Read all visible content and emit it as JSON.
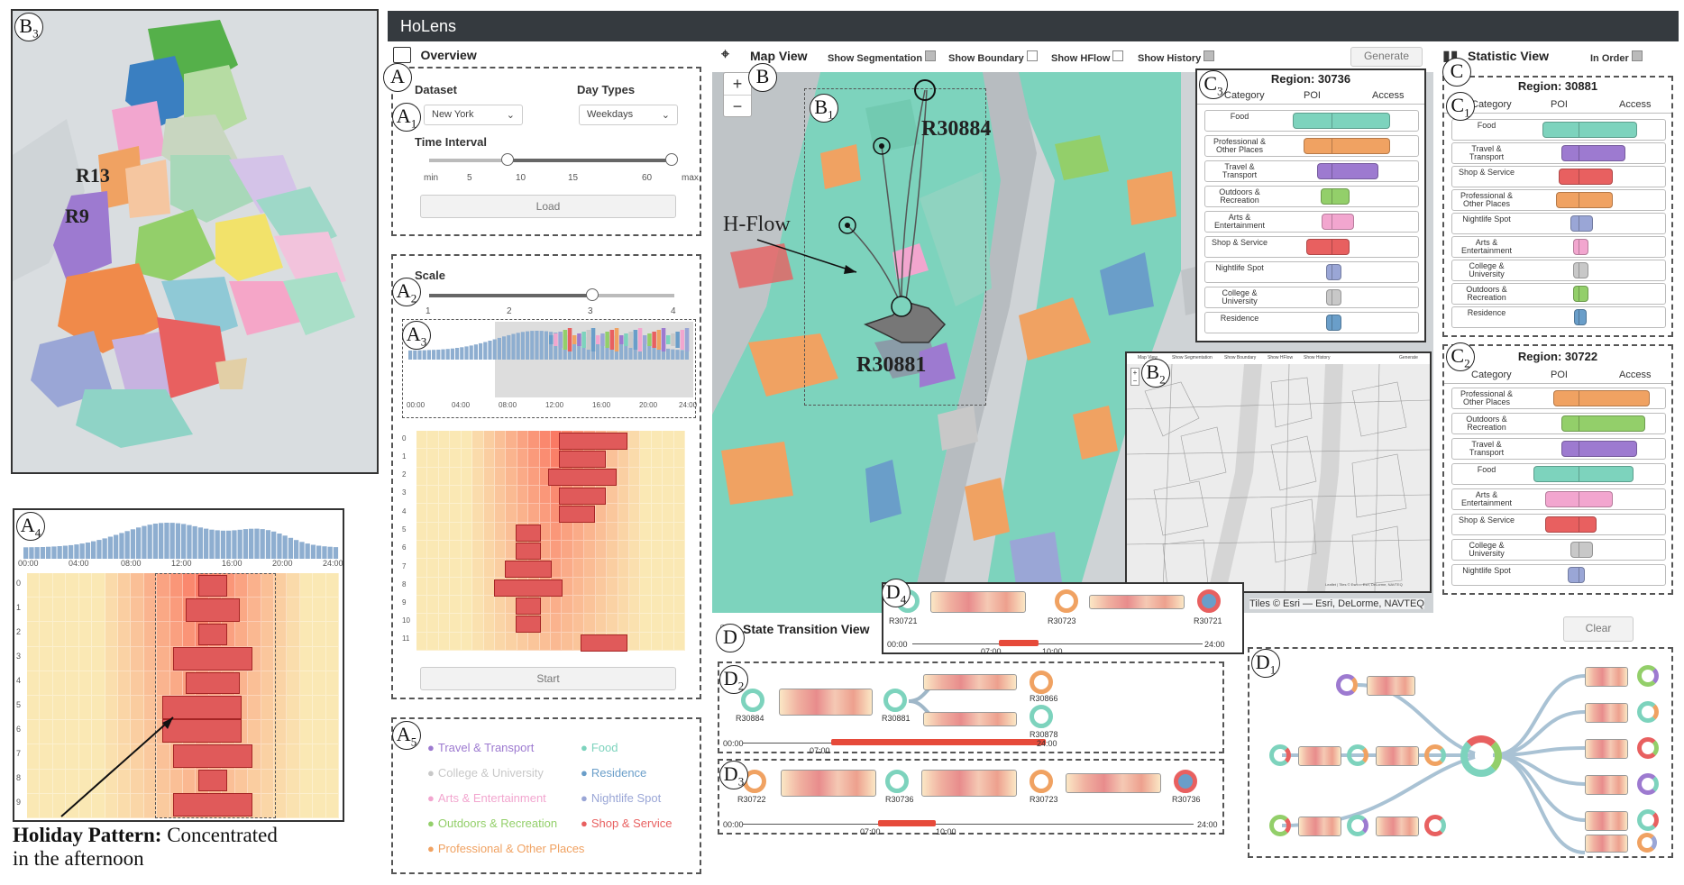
{
  "app_title": "HoLens",
  "labels": {
    "b3": "B",
    "a4": "A",
    "a": "A",
    "a1": "A",
    "a2": "A",
    "a3": "A",
    "a5": "A",
    "b": "B",
    "b1": "B",
    "b2": "B",
    "c": "C",
    "c1": "C",
    "c2": "C",
    "c3": "C",
    "d": "D",
    "d1": "D",
    "d2": "D",
    "d3": "D",
    "d4": "D"
  },
  "subs": {
    "b3": "3",
    "a4": "4",
    "a1": "1",
    "a2": "2",
    "a3": "3",
    "a5": "5",
    "b1": "1",
    "b2": "2",
    "c1": "1",
    "c2": "2",
    "c3": "3",
    "d1": "1",
    "d2": "2",
    "d3": "3",
    "d4": "4"
  },
  "nyc_map": {
    "r13": "R13",
    "r9": "R9"
  },
  "annotation": {
    "bold": "Holiday Pattern:",
    "rest1": " Concentrated",
    "rest2": "in the afternoon"
  },
  "a4_axis": [
    "00:00",
    "04:00",
    "08:00",
    "12:00",
    "16:00",
    "20:00",
    "24:00"
  ],
  "a4_rows": [
    "0",
    "1",
    "2",
    "3",
    "4",
    "5",
    "6",
    "7",
    "8",
    "9"
  ],
  "overview": {
    "title": "Overview",
    "dataset_label": "Dataset",
    "dataset_value": "New York",
    "daytypes_label": "Day Types",
    "daytypes_value": "Weekdays",
    "time_interval_label": "Time Interval",
    "ticks": [
      "min",
      "5",
      "10",
      "15",
      "60",
      "max"
    ],
    "load": "Load",
    "scale_label": "Scale",
    "scale_ticks": [
      "1",
      "2",
      "3",
      "4"
    ],
    "hist_axis": [
      "00:00",
      "04:00",
      "08:00",
      "12:00",
      "16:00",
      "20:00",
      "24:00"
    ],
    "heat_rows": [
      "0",
      "1",
      "2",
      "3",
      "4",
      "5",
      "6",
      "7",
      "8",
      "9",
      "10",
      "11"
    ],
    "start": "Start"
  },
  "legend": [
    {
      "label": "Travel & Transport",
      "color": "#9d7ad0"
    },
    {
      "label": "Food",
      "color": "#7dd3bd"
    },
    {
      "label": "College & University",
      "color": "#c8c8c8"
    },
    {
      "label": "Residence",
      "color": "#6a9ec9"
    },
    {
      "label": "Arts & Entertainment",
      "color": "#f2a6cf"
    },
    {
      "label": "Nightlife Spot",
      "color": "#9aa6d6"
    },
    {
      "label": "Outdoors & Recreation",
      "color": "#93cf6a"
    },
    {
      "label": "Shop & Service",
      "color": "#e86060"
    },
    {
      "label": "Professional & Other Places",
      "color": "#f0a262"
    }
  ],
  "map": {
    "title": "Map View",
    "show_segmentation": "Show Segmentation",
    "show_boundary": "Show Boundary",
    "show_hflow": "Show HFlow",
    "show_history": "Show History",
    "generate": "Generate",
    "r30884": "R30884",
    "r30881": "R30881",
    "hflow": "H-Flow",
    "attribution": "Tiles © Esri — Esri, DeLorme, NAVTEQ",
    "mini_items": [
      "Map View",
      "Show Segmentation",
      "Show Boundary",
      "Show HFlow",
      "Show History",
      "Generate"
    ],
    "mini_attr": "Leaflet | Tiles © Esri — Esri, DeLorme, NAVTEQ"
  },
  "region_c3": {
    "title": "Region: 30736",
    "headers": [
      "Category",
      "POI",
      "Access"
    ],
    "rows": [
      {
        "label": "Food",
        "color": "#7dd3bd",
        "poi": 0.7,
        "acc": 0.7
      },
      {
        "label": "Professional & Other Places",
        "color": "#f0a262",
        "poi": 0.5,
        "acc": 0.7
      },
      {
        "label": "Travel & Transport",
        "color": "#9d7ad0",
        "poi": 0.25,
        "acc": 0.55
      },
      {
        "label": "Outdoors & Recreation",
        "color": "#93cf6a",
        "poi": 0.2,
        "acc": 0.2
      },
      {
        "label": "Arts & Entertainment",
        "color": "#f2a6cf",
        "poi": 0.18,
        "acc": 0.25
      },
      {
        "label": "Shop & Service",
        "color": "#e86060",
        "poi": 0.45,
        "acc": 0.2
      },
      {
        "label": "Nightlife Spot",
        "color": "#9aa6d6",
        "poi": 0.1,
        "acc": 0.1
      },
      {
        "label": "College & University",
        "color": "#c8c8c8",
        "poi": 0.1,
        "acc": 0.1
      },
      {
        "label": "Residence",
        "color": "#6a9ec9",
        "poi": 0.1,
        "acc": 0.1
      }
    ]
  },
  "statistic": {
    "title": "Statistic View",
    "in_order": "In Order",
    "c1_title": "Region: 30881",
    "headers": [
      "Category",
      "POI",
      "Access"
    ],
    "c1_rows": [
      {
        "label": "Food",
        "color": "#7dd3bd",
        "poi": 0.65,
        "acc": 0.7
      },
      {
        "label": "Travel & Transport",
        "color": "#9d7ad0",
        "poi": 0.3,
        "acc": 0.55
      },
      {
        "label": "Shop & Service",
        "color": "#e86060",
        "poi": 0.35,
        "acc": 0.4
      },
      {
        "label": "Professional & Other Places",
        "color": "#f0a262",
        "poi": 0.4,
        "acc": 0.4
      },
      {
        "label": "Nightlife Spot",
        "color": "#9aa6d6",
        "poi": 0.15,
        "acc": 0.15
      },
      {
        "label": "Arts & Entertainment",
        "color": "#f2a6cf",
        "poi": 0.1,
        "acc": 0.1
      },
      {
        "label": "College & University",
        "color": "#c8c8c8",
        "poi": 0.1,
        "acc": 0.1
      },
      {
        "label": "Outdoors & Recreation",
        "color": "#93cf6a",
        "poi": 0.1,
        "acc": 0.1
      },
      {
        "label": "Residence",
        "color": "#6a9ec9",
        "poi": 0.08,
        "acc": 0.08
      }
    ],
    "c2_title": "Region: 30722",
    "c2_rows": [
      {
        "label": "Professional & Other Places",
        "color": "#f0a262",
        "poi": 0.45,
        "acc": 0.85
      },
      {
        "label": "Outdoors & Recreation",
        "color": "#93cf6a",
        "poi": 0.3,
        "acc": 0.8
      },
      {
        "label": "Travel & Transport",
        "color": "#9d7ad0",
        "poi": 0.3,
        "acc": 0.7
      },
      {
        "label": "Food",
        "color": "#7dd3bd",
        "poi": 0.8,
        "acc": 0.65
      },
      {
        "label": "Arts & Entertainment",
        "color": "#f2a6cf",
        "poi": 0.6,
        "acc": 0.4
      },
      {
        "label": "Shop & Service",
        "color": "#e86060",
        "poi": 0.6,
        "acc": 0.2
      },
      {
        "label": "College & University",
        "color": "#c8c8c8",
        "poi": 0.15,
        "acc": 0.15
      },
      {
        "label": "Nightlife Spot",
        "color": "#9aa6d6",
        "poi": 0.2,
        "acc": 0.05
      }
    ]
  },
  "state": {
    "title": "State Transition View",
    "clear": "Clear",
    "d4_regions": [
      "R30721",
      "R30723",
      "R30721"
    ],
    "d4_axis": [
      "00:00",
      "07:00",
      "10:00",
      "24:00"
    ],
    "d2_regions": [
      "R30884",
      "R30881",
      "R30866",
      "R30878"
    ],
    "d2_axis": [
      "00:00",
      "07:00",
      "24:00"
    ],
    "d3_regions": [
      "R30722",
      "R30736",
      "R30723",
      "R30736"
    ],
    "d3_axis": [
      "00:00",
      "07:00",
      "10:00",
      "24:00"
    ]
  }
}
